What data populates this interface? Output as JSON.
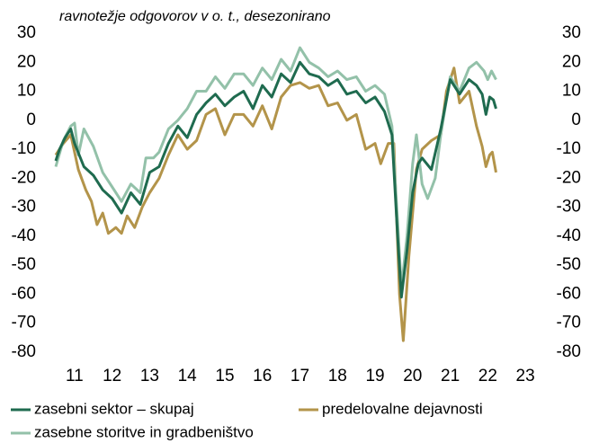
{
  "chart_data": {
    "type": "line",
    "subtitle": "ravnotežje odgovorov v o. t., desezonirano",
    "xlim": [
      2011,
      2024
    ],
    "xticks": [
      {
        "value": 2011.5,
        "label": "11"
      },
      {
        "value": 2012.5,
        "label": "12"
      },
      {
        "value": 2013.5,
        "label": "13"
      },
      {
        "value": 2014.5,
        "label": "14"
      },
      {
        "value": 2015.5,
        "label": "15"
      },
      {
        "value": 2016.5,
        "label": "16"
      },
      {
        "value": 2017.5,
        "label": "17"
      },
      {
        "value": 2018.5,
        "label": "18"
      },
      {
        "value": 2019.5,
        "label": "19"
      },
      {
        "value": 2020.5,
        "label": "20"
      },
      {
        "value": 2021.5,
        "label": "21"
      },
      {
        "value": 2022.5,
        "label": "22"
      },
      {
        "value": 2023.5,
        "label": "23"
      }
    ],
    "ylim": [
      -80,
      30
    ],
    "yticks": [
      -80,
      -70,
      -60,
      -50,
      -40,
      -30,
      -20,
      -10,
      0,
      10,
      20,
      30
    ],
    "y2lim": [
      -80,
      30
    ],
    "y2ticks": [
      -80,
      -70,
      -60,
      -50,
      -40,
      -30,
      -20,
      -10,
      0,
      10,
      20,
      30
    ],
    "series": [
      {
        "name": "zasebni sektor – skupaj",
        "color": "#1f6b4f",
        "x": [
          2011.0,
          2011.1,
          2011.25,
          2011.4,
          2011.5,
          2011.75,
          2012.0,
          2012.25,
          2012.5,
          2012.75,
          2013.0,
          2013.25,
          2013.5,
          2013.75,
          2014.0,
          2014.25,
          2014.5,
          2014.75,
          2015.0,
          2015.25,
          2015.5,
          2015.75,
          2016.0,
          2016.25,
          2016.5,
          2016.75,
          2017.0,
          2017.25,
          2017.5,
          2017.75,
          2018.0,
          2018.25,
          2018.5,
          2018.75,
          2019.0,
          2019.25,
          2019.5,
          2019.75,
          2019.95,
          2020.1,
          2020.2,
          2020.35,
          2020.5,
          2020.65,
          2020.75,
          2021.0,
          2021.25,
          2021.5,
          2021.75,
          2022.0,
          2022.2,
          2022.35,
          2022.45,
          2022.55,
          2022.65,
          2022.72
        ],
        "values": [
          -14,
          -10,
          -6,
          -3,
          -8,
          -16,
          -19,
          -24,
          -27,
          -32,
          -25,
          -29,
          -18,
          -16,
          -8,
          -2,
          -6,
          2,
          6,
          9,
          5,
          8,
          10,
          4,
          12,
          8,
          16,
          13,
          20,
          16,
          15,
          12,
          14,
          9,
          10,
          6,
          8,
          3,
          -5,
          -40,
          -61,
          -45,
          -25,
          -15,
          -13,
          -17,
          -3,
          14,
          9,
          14,
          12,
          9,
          2,
          8,
          7,
          4
        ]
      },
      {
        "name": "predelovalne dejavnosti",
        "color": "#b3944a",
        "x": [
          2011.0,
          2011.2,
          2011.4,
          2011.6,
          2011.8,
          2011.95,
          2012.1,
          2012.25,
          2012.4,
          2012.6,
          2012.75,
          2012.9,
          2013.1,
          2013.3,
          2013.5,
          2013.75,
          2014.0,
          2014.25,
          2014.5,
          2014.75,
          2015.0,
          2015.25,
          2015.5,
          2015.75,
          2016.0,
          2016.25,
          2016.5,
          2016.75,
          2017.0,
          2017.25,
          2017.5,
          2017.75,
          2018.0,
          2018.25,
          2018.5,
          2018.75,
          2019.0,
          2019.25,
          2019.5,
          2019.65,
          2019.85,
          2020.0,
          2020.15,
          2020.25,
          2020.4,
          2020.6,
          2020.75,
          2021.0,
          2021.25,
          2021.4,
          2021.6,
          2021.75,
          2022.0,
          2022.2,
          2022.35,
          2022.45,
          2022.55,
          2022.62,
          2022.72
        ],
        "values": [
          -12,
          -8,
          -5,
          -17,
          -24,
          -28,
          -36,
          -32,
          -39,
          -37,
          -39,
          -33,
          -37,
          -30,
          -25,
          -20,
          -12,
          -5,
          -10,
          -7,
          2,
          4,
          -5,
          2,
          2,
          -2,
          5,
          -3,
          8,
          12,
          13,
          11,
          12,
          5,
          6,
          0,
          2,
          -10,
          -8,
          -15,
          -8,
          -8,
          -60,
          -76,
          -47,
          -17,
          -10,
          -7,
          -5,
          10,
          18,
          6,
          10,
          -2,
          -9,
          -16,
          -12,
          -11,
          -18
        ]
      },
      {
        "name": "zasebne storitve in gradbeništvo",
        "color": "#93c1a9",
        "x": [
          2011.0,
          2011.2,
          2011.4,
          2011.5,
          2011.6,
          2011.75,
          2012.0,
          2012.25,
          2012.5,
          2012.75,
          2013.0,
          2013.25,
          2013.4,
          2013.6,
          2013.75,
          2014.0,
          2014.25,
          2014.5,
          2014.75,
          2015.0,
          2015.25,
          2015.5,
          2015.75,
          2016.0,
          2016.25,
          2016.5,
          2016.75,
          2017.0,
          2017.25,
          2017.5,
          2017.75,
          2018.0,
          2018.25,
          2018.5,
          2018.75,
          2019.0,
          2019.25,
          2019.5,
          2019.75,
          2019.95,
          2020.1,
          2020.2,
          2020.35,
          2020.5,
          2020.6,
          2020.75,
          2020.9,
          2021.1,
          2021.25,
          2021.5,
          2021.75,
          2022.0,
          2022.2,
          2022.4,
          2022.5,
          2022.6,
          2022.72
        ],
        "values": [
          -16,
          -7,
          -2,
          -1,
          -12,
          -3,
          -9,
          -18,
          -23,
          -28,
          -22,
          -25,
          -13,
          -13,
          -11,
          -3,
          0,
          4,
          10,
          10,
          15,
          11,
          16,
          16,
          12,
          18,
          14,
          21,
          17,
          25,
          20,
          18,
          15,
          17,
          14,
          15,
          10,
          12,
          9,
          -2,
          -35,
          -58,
          -40,
          -15,
          -5,
          -22,
          -27,
          -20,
          -5,
          15,
          10,
          18,
          20,
          17,
          14,
          17,
          14
        ]
      }
    ]
  }
}
